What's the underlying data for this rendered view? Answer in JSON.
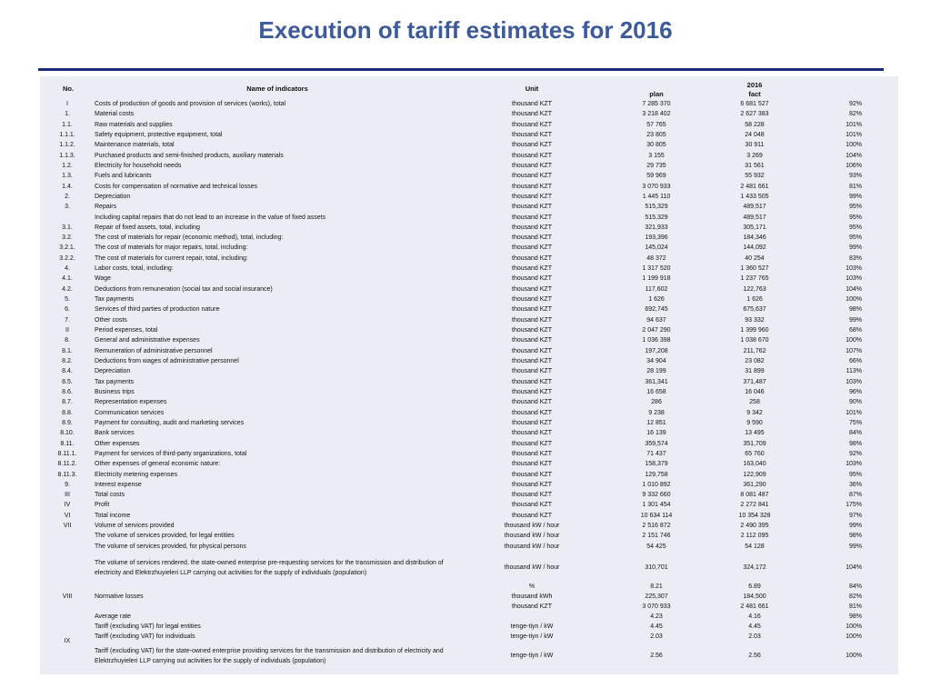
{
  "slide": {
    "title": "Execution of tariff estimates for 2016"
  },
  "table": {
    "headers": {
      "no": "No.",
      "name": "Name of indicators",
      "unit": "Unit",
      "year": "2016",
      "plan": "plan",
      "fact": "fact"
    },
    "rows": [
      {
        "no": "I",
        "name": "Costs of production of goods and provision of services (works), total",
        "unit": "thousand KZT",
        "plan": "7 285 370",
        "fact": "6 681 527",
        "pct": "92%"
      },
      {
        "no": "1.",
        "name": "Material costs",
        "unit": "thousand KZT",
        "plan": "3 218 402",
        "fact": "2 627 383",
        "pct": "82%"
      },
      {
        "no": "1.1.",
        "name": "Raw materials and supplies",
        "unit": "thousand KZT",
        "plan": "57 765",
        "fact": "58 228",
        "pct": "101%"
      },
      {
        "no": "1.1.1.",
        "name": "Safety equipment, protective equipment, total",
        "unit": "thousand KZT",
        "plan": "23 805",
        "fact": "24 048",
        "pct": "101%"
      },
      {
        "no": "1.1.2.",
        "name": "Maintenance materials, total",
        "unit": "thousand KZT",
        "plan": "30 805",
        "fact": "30 911",
        "pct": "100%"
      },
      {
        "no": "1.1.3.",
        "name": "Purchased products and semi-finished products, auxiliary materials",
        "unit": "thousand KZT",
        "plan": "3 155",
        "fact": "3 269",
        "pct": "104%"
      },
      {
        "no": "1.2.",
        "name": "Electricity for household needs",
        "unit": "thousand KZT",
        "plan": "29 735",
        "fact": "31 561",
        "pct": "106%"
      },
      {
        "no": "1.3.",
        "name": "Fuels and lubricants",
        "unit": "thousand KZT",
        "plan": "59 969",
        "fact": "55 932",
        "pct": "93%"
      },
      {
        "no": "1.4.",
        "name": "Costs for compensation of normative and technical losses",
        "unit": "thousand KZT",
        "plan": "3 070 933",
        "fact": "2 481 661",
        "pct": "81%"
      },
      {
        "no": "2.",
        "name": "Depreciation",
        "unit": "thousand KZT",
        "plan": "1 445 110",
        "fact": "1 433 505",
        "pct": "99%"
      },
      {
        "no": "3.",
        "name": "Repairs",
        "unit": "thousand KZT",
        "plan": "515,329",
        "fact": "489,517",
        "pct": "95%"
      },
      {
        "no": "",
        "name": "Including capital repairs that do not lead to an increase in the value of fixed assets",
        "unit": "thousand KZT",
        "plan": "515,329",
        "fact": "489,517",
        "pct": "95%"
      },
      {
        "no": "3.1.",
        "name": "Repair of fixed assets, total, including",
        "unit": "thousand KZT",
        "plan": "321,933",
        "fact": "305,171",
        "pct": "95%"
      },
      {
        "no": "3.2.",
        "name": "The cost of materials for repair (economic method), total, including:",
        "unit": "thousand KZT",
        "plan": "193,396",
        "fact": "184,346",
        "pct": "95%"
      },
      {
        "no": "3.2.1.",
        "name": "The cost of materials for major repairs, total, including:",
        "unit": "thousand KZT",
        "plan": "145,024",
        "fact": "144,092",
        "pct": "99%"
      },
      {
        "no": "3.2.2.",
        "name": "The cost of materials for current repair, total, including:",
        "unit": "thousand KZT",
        "plan": "48 372",
        "fact": "40 254",
        "pct": "83%"
      },
      {
        "no": "4.",
        "name": "Labor costs, total, including:",
        "unit": "thousand KZT",
        "plan": "1 317 520",
        "fact": "1 360 527",
        "pct": "103%"
      },
      {
        "no": "4.1.",
        "name": "Wage",
        "unit": "thousand KZT",
        "plan": "1 199 918",
        "fact": "1 237 765",
        "pct": "103%"
      },
      {
        "no": "4.2.",
        "name": "Deductions from remuneration (social tax and social insurance)",
        "unit": "thousand KZT",
        "plan": "117,602",
        "fact": "122,763",
        "pct": "104%"
      },
      {
        "no": "5.",
        "name": "Tax payments",
        "unit": "thousand KZT",
        "plan": "1 626",
        "fact": "1 626",
        "pct": "100%"
      },
      {
        "no": "6.",
        "name": "Services of third parties of production nature",
        "unit": "thousand KZT",
        "plan": "692,745",
        "fact": "675,637",
        "pct": "98%"
      },
      {
        "no": "7.",
        "name": "Other costs",
        "unit": "thousand KZT",
        "plan": "94 637",
        "fact": "93 332",
        "pct": "99%"
      },
      {
        "no": "II",
        "name": "Period expenses, total",
        "unit": "thousand KZT",
        "plan": "2 047 290",
        "fact": "1 399 960",
        "pct": "68%"
      },
      {
        "no": "8.",
        "name": "General and administrative expenses",
        "unit": "thousand KZT",
        "plan": "1 036 398",
        "fact": "1 038 670",
        "pct": "100%"
      },
      {
        "no": "8.1.",
        "name": "Remuneration of administrative personnel",
        "unit": "thousand KZT",
        "plan": "197,208",
        "fact": "211,762",
        "pct": "107%"
      },
      {
        "no": "8.2.",
        "name": "Deductions from wages of administrative personnel",
        "unit": "thousand KZT",
        "plan": "34 904",
        "fact": "23 082",
        "pct": "66%"
      },
      {
        "no": "8.4.",
        "name": "Depreciation",
        "unit": "thousand KZT",
        "plan": "28 199",
        "fact": "31 899",
        "pct": "113%"
      },
      {
        "no": "8.5.",
        "name": "Tax payments",
        "unit": "thousand KZT",
        "plan": "361,341",
        "fact": "371,487",
        "pct": "103%"
      },
      {
        "no": "8.6.",
        "name": "Business trips",
        "unit": "thousand KZT",
        "plan": "16 658",
        "fact": "16 046",
        "pct": "96%"
      },
      {
        "no": "8.7.",
        "name": "Representation expenses",
        "unit": "thousand KZT",
        "plan": "286",
        "fact": "258",
        "pct": "90%"
      },
      {
        "no": "8.8.",
        "name": "Communication services",
        "unit": "thousand KZT",
        "plan": "9 238",
        "fact": "9 342",
        "pct": "101%"
      },
      {
        "no": "8.9.",
        "name": "Payment for consulting, audit and marketing services",
        "unit": "thousand KZT",
        "plan": "12 851",
        "fact": "9 590",
        "pct": "75%"
      },
      {
        "no": "8.10.",
        "name": "Bank services",
        "unit": "thousand KZT",
        "plan": "16 139",
        "fact": "13 495",
        "pct": "84%"
      },
      {
        "no": "8.11.",
        "name": "Other expenses",
        "unit": "thousand KZT",
        "plan": "359,574",
        "fact": "351,709",
        "pct": "98%"
      },
      {
        "no": "8.11.1.",
        "name": "Payment for services of third-party organizations, total",
        "unit": "thousand KZT",
        "plan": "71 437",
        "fact": "65 760",
        "pct": "92%"
      },
      {
        "no": "8.11.2.",
        "name": "Other expenses of general economic nature:",
        "unit": "thousand KZT",
        "plan": "158,379",
        "fact": "163,040",
        "pct": "103%"
      },
      {
        "no": "8.11.3.",
        "name": "Electricity metering expenses",
        "unit": "thousand KZT",
        "plan": "129,758",
        "fact": "122,909",
        "pct": "95%"
      },
      {
        "no": "9.",
        "name": "Interest expense",
        "unit": "thousand KZT",
        "plan": "1 010 892",
        "fact": "361,290",
        "pct": "36%"
      },
      {
        "no": "III",
        "name": "Total costs",
        "unit": "thousand KZT",
        "plan": "9 332 660",
        "fact": "8 081 487",
        "pct": "87%"
      },
      {
        "no": "IV",
        "name": "Profit",
        "unit": "thousand KZT",
        "plan": "1 301 454",
        "fact": "2 272 841",
        "pct": "175%"
      },
      {
        "no": "VI",
        "name": "Total income",
        "unit": "thousand KZT",
        "plan": "10 634 114",
        "fact": "10 354 328",
        "pct": "97%"
      },
      {
        "no": "VII",
        "name": "Volume of services provided",
        "unit": "thousand kW / hour",
        "plan": "2 516 872",
        "fact": "2 490 395",
        "pct": "99%"
      },
      {
        "no": "",
        "name": "The volume of services provided, for legal entities",
        "unit": "thousand kW / hour",
        "plan": "2 151 746",
        "fact": "2 112 095",
        "pct": "98%"
      },
      {
        "no": "",
        "name": "The volume of services provided, for physical persons",
        "unit": "thousand kW / hour",
        "plan": "54 425",
        "fact": "54 128",
        "pct": "99%"
      }
    ],
    "special": {
      "state_volume": {
        "name": "The volume of services rendered, the state-owned enterprise pre-requesting services for the transmission and distribution of electricity and Elektrzhuyieleri LLP carrying out activities for the supply of individuals (population)",
        "unit": "thousand kW / hour",
        "plan": "310,701",
        "fact": "324,172",
        "pct": "104%"
      },
      "losses": {
        "no": "VIII",
        "name": "Normative losses",
        "units": [
          "%",
          "thousand kWh",
          "thousand KZT"
        ],
        "plans": [
          "8.21",
          "225,307",
          "3 070 933"
        ],
        "facts": [
          "6.89",
          "184,500",
          "2 481 661"
        ],
        "pcts": [
          "84%",
          "82%",
          "81%"
        ]
      },
      "avg_rate": {
        "name": "Average rate",
        "unit": "",
        "plan": "4.23",
        "fact": "4.16",
        "pct": "98%"
      },
      "tariff_group_no": "IX",
      "tariff_legal": {
        "name": "Tariff (excluding VAT) for legal entities",
        "unit": "tenge-tiyn / kW",
        "plan": "4.45",
        "fact": "4.45",
        "pct": "100%"
      },
      "tariff_ind": {
        "name": "Tariff (excluding VAT) for individuals",
        "unit": "tenge-tiyn / kW",
        "plan": "2.03",
        "fact": "2.03",
        "pct": "100%"
      },
      "tariff_state": {
        "name": "Tariff (excluding VAT) for the state-owned enterprise providing services for the transmission and distribution of electricity and Elektrzhuyieleri LLP carrying out activities for the supply of individuals (population)",
        "unit": "tenge-tiyn / kW",
        "plan": "2.56",
        "fact": "2.56",
        "pct": "100%"
      }
    }
  }
}
